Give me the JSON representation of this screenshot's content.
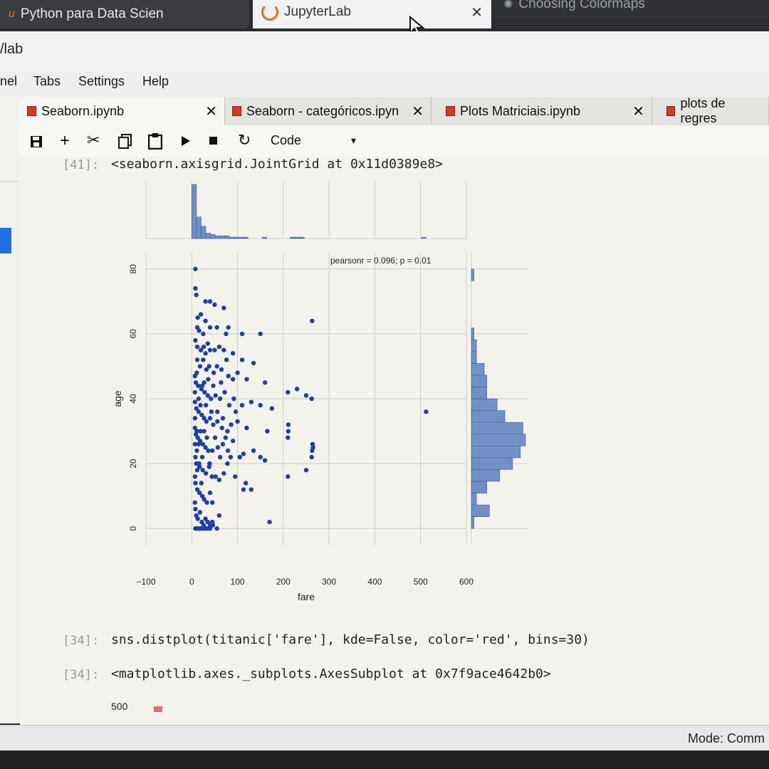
{
  "browser": {
    "tabs": [
      {
        "title": "Python para Data Scien",
        "icon": "udemy-icon"
      },
      {
        "title": "JupyterLab",
        "icon": "jupyter-spinner-icon"
      },
      {
        "title": "Choosing Colormaps",
        "icon": "matplotlib-icon"
      }
    ],
    "close_symbol": "✕",
    "url": "/lab"
  },
  "menubar": [
    "nel",
    "Tabs",
    "Settings",
    "Help"
  ],
  "notebook_tabs": [
    {
      "label": "Seaborn.ipynb",
      "close": "✕"
    },
    {
      "label": "Seaborn - categóricos.ipyn",
      "close": "✕"
    },
    {
      "label": "Plots Matriciais.ipynb",
      "close": "✕"
    },
    {
      "label": "plots de regres",
      "close": ""
    }
  ],
  "toolbar": {
    "icons": [
      "save-icon",
      "add-cell-icon",
      "cut-icon",
      "copy-icon",
      "paste-icon",
      "run-icon",
      "stop-icon",
      "restart-icon"
    ],
    "cell_type": "Code"
  },
  "cells": [
    {
      "prompt": "[41]:",
      "output": "<seaborn.axisgrid.JointGrid at 0x11d0389e8>"
    },
    {
      "prompt": "[34]:",
      "code": "sns.distplot(titanic['fare'], kde=False, color='red', bins=30)"
    },
    {
      "prompt": "[34]:",
      "output": "<matplotlib.axes._subplots.AxesSubplot at 0x7f9ace4642b0>"
    }
  ],
  "next_plot": {
    "first_tick": "500"
  },
  "status": {
    "mode": "Mode: Comm"
  },
  "colors": {
    "points": "#1f3fa6",
    "hist": "#5b7ec2",
    "accent_tab": "#d33a2c"
  },
  "chart_data": {
    "type": "scatter",
    "title": "",
    "annotation": "pearsonr = 0.096; p = 0.01",
    "xlabel": "fare",
    "ylabel": "age",
    "xlim": [
      -100,
      600
    ],
    "ylim": [
      -5,
      85
    ],
    "xticks": [
      -100,
      0,
      100,
      200,
      300,
      400,
      500,
      600
    ],
    "yticks": [
      0,
      20,
      40,
      60,
      80
    ],
    "grid": true,
    "marginal_x_hist": [
      40,
      16,
      9,
      4,
      3,
      2,
      2,
      2,
      1,
      1,
      1,
      1,
      0,
      0,
      0,
      1,
      0,
      0,
      0,
      0,
      0,
      1,
      1,
      1,
      0,
      0,
      0,
      0,
      0,
      0,
      0,
      0,
      0,
      0,
      0,
      0,
      0,
      0,
      0,
      0,
      0,
      0,
      0,
      0,
      0,
      0,
      0,
      0,
      0,
      1
    ],
    "marginal_x_bin_range": [
      0,
      512
    ],
    "marginal_y_hist": [
      1,
      7,
      2,
      6,
      11,
      16,
      19,
      21,
      20,
      13,
      10,
      6,
      6,
      5,
      2,
      2,
      1,
      0,
      0,
      0,
      0,
      1
    ],
    "marginal_y_bin_range": [
      0,
      80
    ],
    "points": [
      [
        8,
        80
      ],
      [
        8,
        74
      ],
      [
        10,
        72
      ],
      [
        30,
        70
      ],
      [
        40,
        70
      ],
      [
        50,
        69
      ],
      [
        70,
        68
      ],
      [
        13,
        65
      ],
      [
        20,
        66
      ],
      [
        30,
        64
      ],
      [
        40,
        62
      ],
      [
        12,
        62
      ],
      [
        16,
        61
      ],
      [
        25,
        60
      ],
      [
        55,
        62
      ],
      [
        80,
        62
      ],
      [
        110,
        60
      ],
      [
        150,
        60
      ],
      [
        263,
        64
      ],
      [
        75,
        60
      ],
      [
        8,
        58
      ],
      [
        12,
        56
      ],
      [
        20,
        55
      ],
      [
        26,
        56
      ],
      [
        30,
        54
      ],
      [
        35,
        57
      ],
      [
        40,
        55
      ],
      [
        50,
        55
      ],
      [
        60,
        56
      ],
      [
        70,
        55
      ],
      [
        90,
        54
      ],
      [
        76,
        52
      ],
      [
        110,
        52
      ],
      [
        135,
        51
      ],
      [
        12,
        52
      ],
      [
        18,
        50
      ],
      [
        25,
        52
      ],
      [
        32,
        49
      ],
      [
        38,
        50
      ],
      [
        48,
        48
      ],
      [
        55,
        50
      ],
      [
        65,
        49
      ],
      [
        80,
        47
      ],
      [
        90,
        46
      ],
      [
        100,
        48
      ],
      [
        120,
        46
      ],
      [
        160,
        45
      ],
      [
        7,
        47
      ],
      [
        9,
        45
      ],
      [
        14,
        44
      ],
      [
        21,
        43
      ],
      [
        28,
        42
      ],
      [
        35,
        41
      ],
      [
        42,
        40
      ],
      [
        52,
        41
      ],
      [
        62,
        40
      ],
      [
        72,
        42
      ],
      [
        82,
        38
      ],
      [
        92,
        40
      ],
      [
        110,
        38
      ],
      [
        130,
        39
      ],
      [
        150,
        38
      ],
      [
        175,
        37
      ],
      [
        210,
        42
      ],
      [
        230,
        43
      ],
      [
        250,
        41
      ],
      [
        262,
        40
      ],
      [
        512,
        36
      ],
      [
        7,
        39
      ],
      [
        10,
        37
      ],
      [
        15,
        36
      ],
      [
        22,
        35
      ],
      [
        27,
        34
      ],
      [
        32,
        33
      ],
      [
        40,
        34
      ],
      [
        47,
        32
      ],
      [
        56,
        33
      ],
      [
        66,
        31
      ],
      [
        78,
        30
      ],
      [
        86,
        32
      ],
      [
        100,
        33
      ],
      [
        120,
        31
      ],
      [
        165,
        30
      ],
      [
        7,
        31
      ],
      [
        9,
        29
      ],
      [
        13,
        28
      ],
      [
        18,
        27
      ],
      [
        24,
        26
      ],
      [
        30,
        25
      ],
      [
        36,
        24
      ],
      [
        45,
        24
      ],
      [
        57,
        25
      ],
      [
        68,
        26
      ],
      [
        79,
        24
      ],
      [
        90,
        27
      ],
      [
        105,
        22
      ],
      [
        113,
        23
      ],
      [
        135,
        24
      ],
      [
        150,
        22
      ],
      [
        160,
        21
      ],
      [
        210,
        28
      ],
      [
        211,
        30
      ],
      [
        211,
        32
      ],
      [
        250,
        18
      ],
      [
        262,
        22
      ],
      [
        263,
        24
      ],
      [
        264,
        26
      ],
      [
        265,
        25
      ],
      [
        210,
        16
      ],
      [
        8,
        22
      ],
      [
        10,
        20
      ],
      [
        12,
        18
      ],
      [
        17,
        19
      ],
      [
        24,
        18
      ],
      [
        31,
        17
      ],
      [
        38,
        19
      ],
      [
        44,
        16
      ],
      [
        52,
        16
      ],
      [
        60,
        15
      ],
      [
        70,
        17
      ],
      [
        78,
        20
      ],
      [
        95,
        16
      ],
      [
        118,
        14
      ],
      [
        113,
        12
      ],
      [
        130,
        12
      ],
      [
        8,
        14
      ],
      [
        12,
        12
      ],
      [
        17,
        11
      ],
      [
        23,
        10
      ],
      [
        27,
        9
      ],
      [
        33,
        8
      ],
      [
        40,
        11
      ],
      [
        45,
        8
      ],
      [
        8,
        6
      ],
      [
        10,
        4
      ],
      [
        13,
        3
      ],
      [
        18,
        5
      ],
      [
        22,
        2
      ],
      [
        26,
        1
      ],
      [
        30,
        3
      ],
      [
        35,
        2
      ],
      [
        40,
        1
      ],
      [
        45,
        2
      ],
      [
        55,
        0
      ],
      [
        8,
        0
      ],
      [
        12,
        0
      ],
      [
        16,
        0
      ],
      [
        20,
        0
      ],
      [
        24,
        0
      ],
      [
        28,
        0
      ],
      [
        32,
        0
      ],
      [
        36,
        0
      ],
      [
        40,
        0
      ],
      [
        46,
        1
      ],
      [
        60,
        4
      ],
      [
        170,
        2
      ],
      [
        7,
        42
      ],
      [
        7,
        34
      ],
      [
        7,
        26
      ],
      [
        7,
        16
      ],
      [
        7,
        8
      ],
      [
        11,
        48
      ],
      [
        11,
        30
      ],
      [
        11,
        24
      ],
      [
        15,
        40
      ],
      [
        15,
        26
      ],
      [
        19,
        38
      ],
      [
        19,
        30
      ],
      [
        23,
        44
      ],
      [
        23,
        22
      ],
      [
        27,
        30
      ],
      [
        27,
        45
      ],
      [
        31,
        38
      ],
      [
        33,
        28
      ],
      [
        36,
        46
      ],
      [
        39,
        20
      ],
      [
        43,
        36
      ],
      [
        47,
        44
      ],
      [
        51,
        28
      ],
      [
        56,
        36
      ],
      [
        62,
        22
      ],
      [
        64,
        45
      ],
      [
        68,
        34
      ],
      [
        74,
        28
      ],
      [
        85,
        22
      ],
      [
        96,
        36
      ],
      [
        16,
        20
      ],
      [
        21,
        14
      ]
    ]
  }
}
